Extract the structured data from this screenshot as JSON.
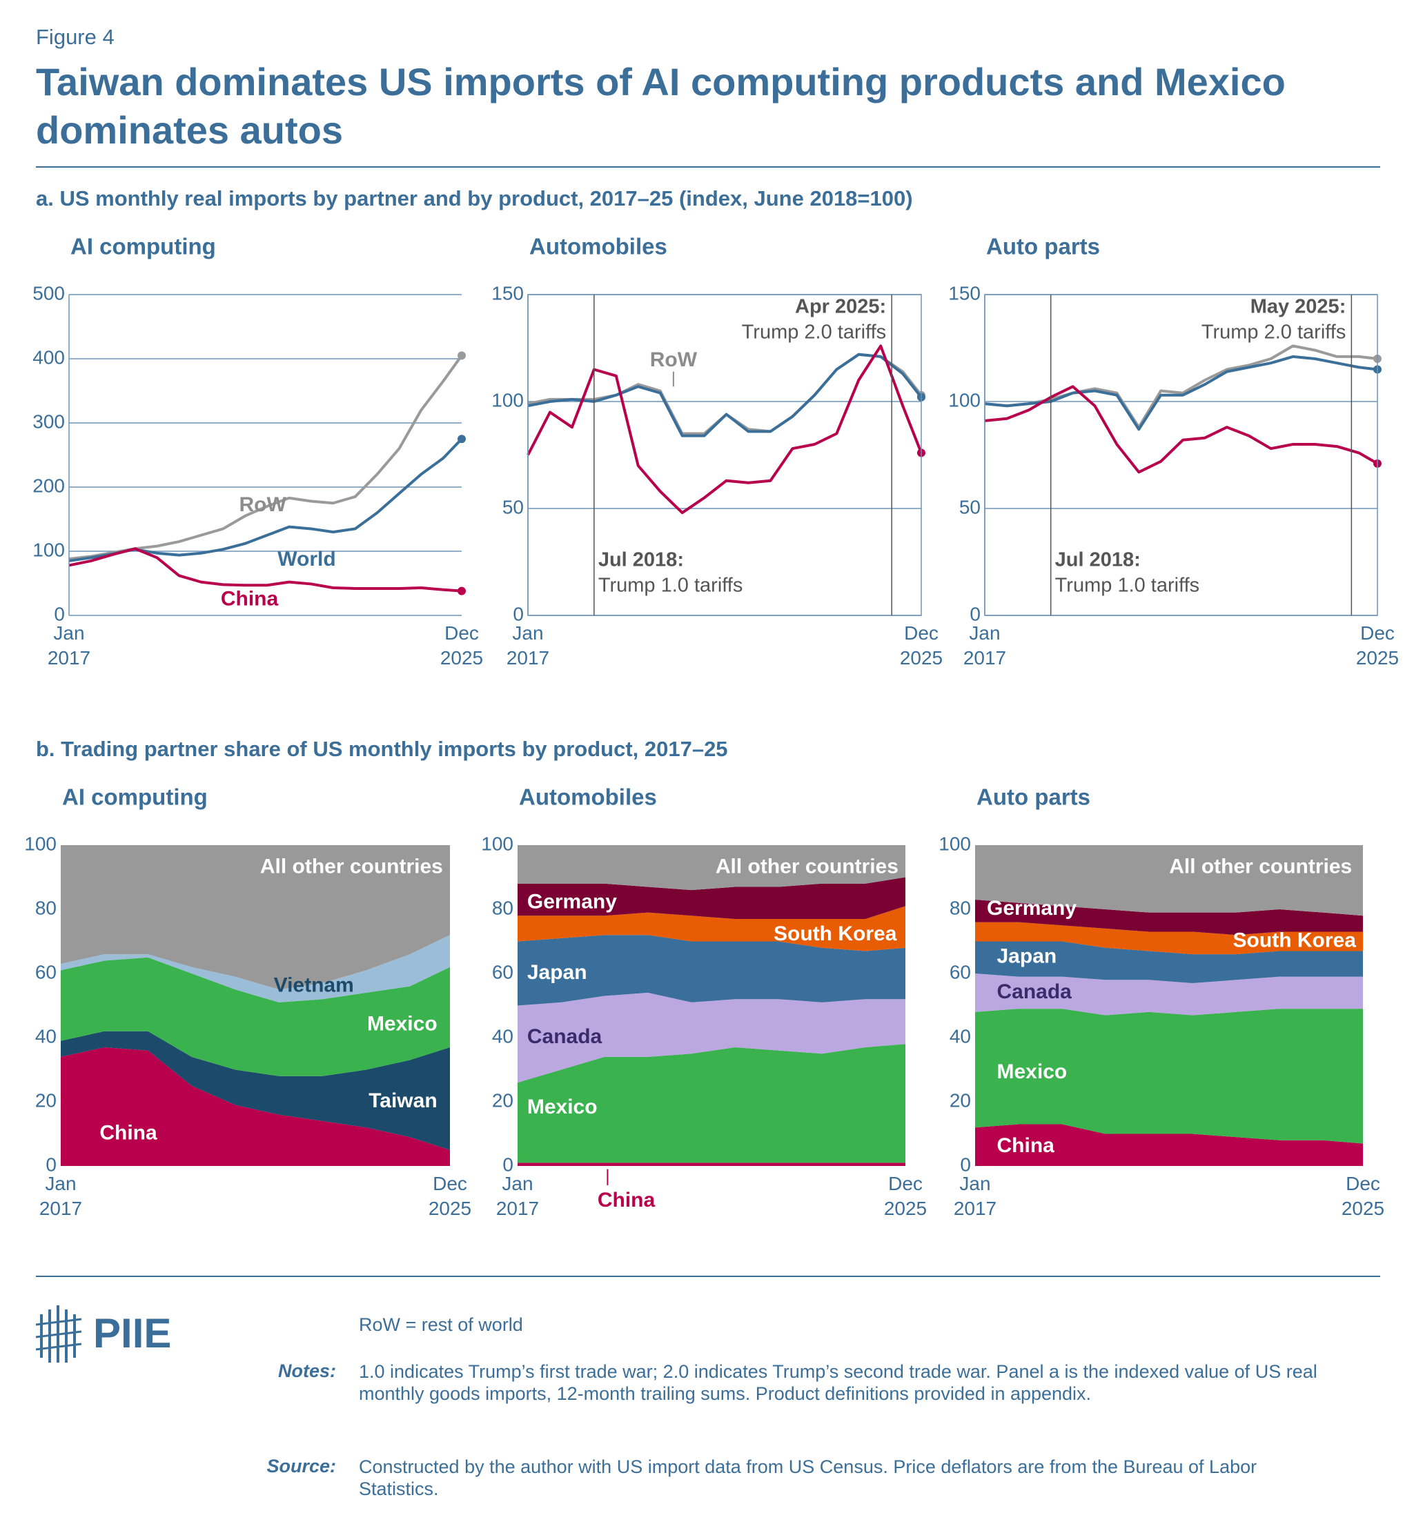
{
  "figure_label": "Figure 4",
  "title": "Taiwan dominates US imports of AI computing products and Mexico dominates autos",
  "panel_a_title": "a. US monthly real imports by partner and by product, 2017–25 (index, June 2018=100)",
  "panel_b_title": "b. Trading partner share of US monthly imports by product, 2017–25",
  "chart_data": [
    {
      "type": "line",
      "title": "AI computing",
      "grid": true,
      "frame": false,
      "x": [
        2017,
        2017.5,
        2018,
        2018.5,
        2019,
        2019.5,
        2020,
        2020.5,
        2021,
        2021.5,
        2022,
        2022.5,
        2023,
        2023.5,
        2024,
        2024.5,
        2025,
        2025.5,
        2025.92
      ],
      "xlim": [
        2017,
        2025.92
      ],
      "xticks": [
        {
          "value": 2017,
          "label": "Jan 2017"
        },
        {
          "value": 2025.92,
          "label": "Dec 2025"
        }
      ],
      "ylim": [
        0,
        500
      ],
      "yticks": [
        0,
        100,
        200,
        300,
        400,
        500
      ],
      "series": [
        {
          "name": "RoW",
          "color": "#9a9a9a",
          "values": [
            88,
            92,
            98,
            104,
            108,
            115,
            125,
            135,
            155,
            170,
            183,
            178,
            175,
            185,
            220,
            260,
            320,
            365,
            405
          ]
        },
        {
          "name": "World",
          "color": "#3a6f9a",
          "values": [
            85,
            90,
            96,
            103,
            97,
            94,
            97,
            103,
            112,
            125,
            138,
            135,
            130,
            135,
            160,
            190,
            220,
            245,
            275
          ]
        },
        {
          "name": "China",
          "color": "#b8004c",
          "values": [
            78,
            85,
            95,
            104,
            90,
            62,
            52,
            48,
            47,
            47,
            52,
            49,
            43,
            42,
            42,
            42,
            43,
            40,
            38
          ]
        }
      ],
      "annotations": []
    },
    {
      "type": "line",
      "title": "Automobiles",
      "grid": true,
      "frame": true,
      "x": [
        2017,
        2017.5,
        2018,
        2018.5,
        2019,
        2019.5,
        2020,
        2020.5,
        2021,
        2021.5,
        2022,
        2022.5,
        2023,
        2023.5,
        2024,
        2024.5,
        2025,
        2025.5,
        2025.92
      ],
      "xlim": [
        2017,
        2025.92
      ],
      "xticks": [
        {
          "value": 2017,
          "label": "Jan 2017"
        },
        {
          "value": 2025.92,
          "label": "Dec 2025"
        }
      ],
      "ylim": [
        0,
        150
      ],
      "yticks": [
        0,
        50,
        100,
        150
      ],
      "series": [
        {
          "name": "RoW",
          "color": "#9a9a9a",
          "values": [
            99,
            101,
            101,
            101,
            103,
            108,
            105,
            85,
            85,
            94,
            87,
            86,
            93,
            103,
            115,
            122,
            121,
            114,
            103
          ]
        },
        {
          "color": "#3a6f9a",
          "values": [
            98,
            100,
            101,
            100,
            103,
            107,
            104,
            84,
            84,
            94,
            86,
            86,
            93,
            103,
            115,
            122,
            121,
            113,
            102
          ]
        },
        {
          "color": "#b8004c",
          "values": [
            75,
            95,
            88,
            115,
            112,
            70,
            58,
            48,
            55,
            63,
            62,
            63,
            78,
            80,
            85,
            110,
            126,
            98,
            76
          ]
        }
      ],
      "annotations": [
        {
          "x": 2018.5,
          "label": "Jul 2018:",
          "text": "Trump 1.0 tariffs"
        },
        {
          "x": 2025.25,
          "label": "Apr 2025:",
          "text": "Trump 2.0 tariffs"
        }
      ]
    },
    {
      "type": "line",
      "title": "Auto parts",
      "grid": true,
      "frame": true,
      "x": [
        2017,
        2017.5,
        2018,
        2018.5,
        2019,
        2019.5,
        2020,
        2020.5,
        2021,
        2021.5,
        2022,
        2022.5,
        2023,
        2023.5,
        2024,
        2024.5,
        2025,
        2025.5,
        2025.92
      ],
      "xlim": [
        2017,
        2025.92
      ],
      "xticks": [
        {
          "value": 2017,
          "label": "Jan 2017"
        },
        {
          "value": 2025.92,
          "label": "Dec 2025"
        }
      ],
      "ylim": [
        0,
        150
      ],
      "yticks": [
        0,
        50,
        100,
        150
      ],
      "series": [
        {
          "color": "#9a9a9a",
          "values": [
            99,
            98,
            99,
            101,
            104,
            106,
            104,
            88,
            105,
            104,
            110,
            115,
            117,
            120,
            126,
            124,
            121,
            121,
            120
          ]
        },
        {
          "color": "#3a6f9a",
          "values": [
            99,
            98,
            99,
            100,
            104,
            105,
            103,
            87,
            103,
            103,
            108,
            114,
            116,
            118,
            121,
            120,
            118,
            116,
            115
          ]
        },
        {
          "color": "#b8004c",
          "values": [
            91,
            92,
            96,
            102,
            107,
            98,
            80,
            67,
            72,
            82,
            83,
            88,
            84,
            78,
            80,
            80,
            79,
            76,
            71
          ]
        }
      ],
      "annotations": [
        {
          "x": 2018.5,
          "label": "Jul 2018:",
          "text": "Trump 1.0 tariffs"
        },
        {
          "x": 2025.33,
          "label": "May 2025:",
          "text": "Trump 2.0 tariffs"
        }
      ]
    },
    {
      "type": "area",
      "title": "AI computing",
      "grid": false,
      "frame": false,
      "x": [
        2017,
        2018,
        2019,
        2020,
        2021,
        2022,
        2023,
        2024,
        2025,
        2025.92
      ],
      "xlim": [
        2017,
        2025.92
      ],
      "xticks": [
        {
          "value": 2017,
          "label": "Jan 2017"
        },
        {
          "value": 2025.92,
          "label": "Dec 2025"
        }
      ],
      "ylim": [
        0,
        100
      ],
      "yticks": [
        0,
        20,
        40,
        60,
        80,
        100
      ],
      "series": [
        {
          "name": "China",
          "color": "#b8004c",
          "values": [
            34,
            37,
            36,
            25,
            19,
            16,
            14,
            12,
            9,
            5
          ]
        },
        {
          "name": "Taiwan",
          "color": "#1b4a6b",
          "values": [
            5,
            5,
            6,
            9,
            11,
            12,
            14,
            18,
            24,
            32
          ]
        },
        {
          "name": "Mexico",
          "color": "#3ab34f",
          "values": [
            22,
            22,
            23,
            26,
            25,
            23,
            24,
            24,
            23,
            25
          ]
        },
        {
          "name": "Vietnam",
          "color": "#9bbdd8",
          "values": [
            2,
            2,
            1,
            2,
            4,
            4,
            5,
            7,
            10,
            10
          ]
        },
        {
          "name": "All other countries",
          "color": "#999999",
          "values": [
            37,
            34,
            34,
            38,
            41,
            45,
            43,
            39,
            34,
            28
          ]
        }
      ],
      "annotations": []
    },
    {
      "type": "area",
      "title": "Automobiles",
      "grid": false,
      "frame": false,
      "x": [
        2017,
        2018,
        2019,
        2020,
        2021,
        2022,
        2023,
        2024,
        2025,
        2025.92
      ],
      "xlim": [
        2017,
        2025.92
      ],
      "xticks": [
        {
          "value": 2017,
          "label": "Jan 2017"
        },
        {
          "value": 2025.92,
          "label": "Dec 2025"
        }
      ],
      "ylim": [
        0,
        100
      ],
      "yticks": [
        0,
        20,
        40,
        60,
        80,
        100
      ],
      "series": [
        {
          "name": "China",
          "color": "#b8004c",
          "values": [
            1,
            1,
            1,
            1,
            1,
            1,
            1,
            1,
            1,
            1
          ]
        },
        {
          "name": "Mexico",
          "color": "#3ab34f",
          "values": [
            25,
            29,
            33,
            33,
            34,
            36,
            35,
            34,
            36,
            37
          ]
        },
        {
          "name": "Canada",
          "color": "#bca8e0",
          "values": [
            24,
            21,
            19,
            20,
            16,
            15,
            16,
            16,
            15,
            14
          ]
        },
        {
          "name": "Japan",
          "color": "#3a6e9b",
          "values": [
            20,
            20,
            19,
            18,
            19,
            18,
            18,
            17,
            15,
            16
          ]
        },
        {
          "name": "South Korea",
          "color": "#e85d04",
          "values": [
            8,
            7,
            6,
            7,
            8,
            7,
            7,
            9,
            10,
            13
          ]
        },
        {
          "name": "Germany",
          "color": "#7a0034",
          "values": [
            10,
            10,
            10,
            8,
            8,
            10,
            10,
            11,
            11,
            9
          ]
        },
        {
          "name": "All other countries",
          "color": "#999999",
          "values": [
            12,
            12,
            12,
            13,
            14,
            13,
            13,
            12,
            12,
            10
          ]
        }
      ],
      "annotations": []
    },
    {
      "type": "area",
      "title": "Auto parts",
      "grid": false,
      "frame": false,
      "x": [
        2017,
        2018,
        2019,
        2020,
        2021,
        2022,
        2023,
        2024,
        2025,
        2025.92
      ],
      "xlim": [
        2017,
        2025.92
      ],
      "xticks": [
        {
          "value": 2017,
          "label": "Jan 2017"
        },
        {
          "value": 2025.92,
          "label": "Dec 2025"
        }
      ],
      "ylim": [
        0,
        100
      ],
      "yticks": [
        0,
        20,
        40,
        60,
        80,
        100
      ],
      "series": [
        {
          "name": "China",
          "color": "#b8004c",
          "values": [
            12,
            13,
            13,
            10,
            10,
            10,
            9,
            8,
            8,
            7
          ]
        },
        {
          "name": "Mexico",
          "color": "#3ab34f",
          "values": [
            36,
            36,
            36,
            37,
            38,
            37,
            39,
            41,
            41,
            42
          ]
        },
        {
          "name": "Canada",
          "color": "#bca8e0",
          "values": [
            12,
            10,
            10,
            11,
            10,
            10,
            10,
            10,
            10,
            10
          ]
        },
        {
          "name": "Japan",
          "color": "#3a6e9b",
          "values": [
            10,
            11,
            11,
            10,
            9,
            9,
            8,
            8,
            8,
            8
          ]
        },
        {
          "name": "South Korea",
          "color": "#e85d04",
          "values": [
            6,
            6,
            5,
            6,
            6,
            7,
            6,
            6,
            6,
            6
          ]
        },
        {
          "name": "Germany",
          "color": "#7a0034",
          "values": [
            7,
            6,
            6,
            6,
            6,
            6,
            7,
            7,
            6,
            5
          ]
        },
        {
          "name": "All other countries",
          "color": "#999999",
          "values": [
            17,
            18,
            19,
            20,
            21,
            21,
            21,
            20,
            21,
            22
          ]
        }
      ],
      "annotations": []
    }
  ],
  "logo": "PIIE",
  "notes": {
    "abbrev": "RoW = rest of world",
    "items": [
      {
        "label": "Notes:",
        "text": "1.0 indicates Trump’s first trade war; 2.0 indicates Trump’s second trade war. Panel a is the indexed value of US real monthly goods imports, 12-month trailing sums. Product definitions provided in appendix."
      },
      {
        "label": "Source:",
        "text": "Constructed by the author with US import data from US Census. Price deflators are from the Bureau of Labor Statistics."
      }
    ]
  }
}
